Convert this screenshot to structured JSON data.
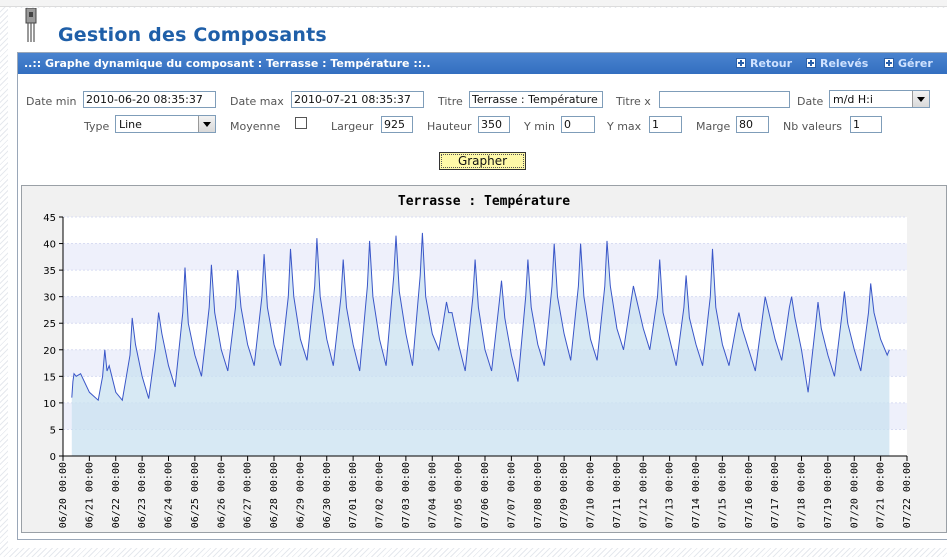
{
  "page": {
    "title": "Gestion des Composants"
  },
  "panel": {
    "title": "..:: Graphe dynamique du composant : Terrasse : Température ::..",
    "links": {
      "retour": "Retour",
      "releves": "Relevés",
      "gerer": "Gérer"
    }
  },
  "form": {
    "date_min": {
      "label": "Date min",
      "value": "2010-06-20 08:35:37"
    },
    "date_max": {
      "label": "Date max",
      "value": "2010-07-21 08:35:37"
    },
    "titre": {
      "label": "Titre",
      "value": "Terrasse : Température"
    },
    "titre_x": {
      "label": "Titre x",
      "value": ""
    },
    "date_fmt": {
      "label": "Date",
      "value": "m/d H:i"
    },
    "type": {
      "label": "Type",
      "value": "Line"
    },
    "moyenne": {
      "label": "Moyenne",
      "checked": false
    },
    "largeur": {
      "label": "Largeur",
      "value": "925"
    },
    "hauteur": {
      "label": "Hauteur",
      "value": "350"
    },
    "ymin": {
      "label": "Y min",
      "value": "0"
    },
    "ymax": {
      "label": "Y max",
      "value": "1"
    },
    "marge": {
      "label": "Marge",
      "value": "80"
    },
    "nb_valeurs": {
      "label": "Nb valeurs",
      "value": "1"
    },
    "submit": "Grapher"
  },
  "colors": {
    "header_blue": "#3a76c6",
    "title_blue": "#1f5fa8",
    "line": "#3a56c8",
    "fill": "#c9e2f0",
    "button_yellow": "#fff9a8"
  },
  "chart_data": {
    "type": "area",
    "title": "Terrasse : Température",
    "xlabel": "",
    "ylabel": "",
    "ylim": [
      0,
      45
    ],
    "yticks": [
      0,
      5,
      10,
      15,
      20,
      25,
      30,
      35,
      40,
      45
    ],
    "x_start": "2010-06-20 00:00",
    "x_end": "2010-07-22 00:00",
    "x_tick_labels": [
      "06/20 00:00",
      "06/21 00:00",
      "06/22 00:00",
      "06/23 00:00",
      "06/24 00:00",
      "06/25 00:00",
      "06/26 00:00",
      "06/27 00:00",
      "06/28 00:00",
      "06/29 00:00",
      "06/30 00:00",
      "07/01 00:00",
      "07/02 00:00",
      "07/03 00:00",
      "07/04 00:00",
      "07/05 00:00",
      "07/06 00:00",
      "07/07 00:00",
      "07/08 00:00",
      "07/09 00:00",
      "07/10 00:00",
      "07/11 00:00",
      "07/12 00:00",
      "07/13 00:00",
      "07/14 00:00",
      "07/15 00:00",
      "07/16 00:00",
      "07/17 00:00",
      "07/18 00:00",
      "07/19 00:00",
      "07/20 00:00",
      "07/21 00:00",
      "07/22 00:00"
    ],
    "series": [
      {
        "points": [
          [
            "06/20 08:00",
            11
          ],
          [
            "06/20 09:00",
            14
          ],
          [
            "06/20 10:00",
            15.5
          ],
          [
            "06/20 12:00",
            15
          ],
          [
            "06/20 16:00",
            15.5
          ],
          [
            "06/21 00:00",
            12
          ],
          [
            "06/21 08:00",
            10.5
          ],
          [
            "06/21 12:00",
            15
          ],
          [
            "06/21 14:00",
            20
          ],
          [
            "06/21 16:00",
            16
          ],
          [
            "06/21 18:00",
            17
          ],
          [
            "06/22 00:00",
            12
          ],
          [
            "06/22 06:00",
            10.5
          ],
          [
            "06/22 13:00",
            19
          ],
          [
            "06/22 15:00",
            26
          ],
          [
            "06/22 18:00",
            21
          ],
          [
            "06/23 00:00",
            15
          ],
          [
            "06/23 06:00",
            10.8
          ],
          [
            "06/23 12:00",
            20
          ],
          [
            "06/23 15:00",
            27
          ],
          [
            "06/23 18:00",
            23
          ],
          [
            "06/24 00:00",
            17
          ],
          [
            "06/24 06:00",
            13
          ],
          [
            "06/24 13:00",
            27
          ],
          [
            "06/24 15:00",
            35.5
          ],
          [
            "06/24 18:00",
            25
          ],
          [
            "06/25 00:00",
            19
          ],
          [
            "06/25 06:00",
            15
          ],
          [
            "06/25 13:00",
            28
          ],
          [
            "06/25 15:00",
            36
          ],
          [
            "06/25 18:00",
            27
          ],
          [
            "06/26 00:00",
            20
          ],
          [
            "06/26 06:00",
            16
          ],
          [
            "06/26 13:00",
            28
          ],
          [
            "06/26 15:00",
            35
          ],
          [
            "06/26 18:00",
            28
          ],
          [
            "06/27 00:00",
            21
          ],
          [
            "06/27 06:00",
            17
          ],
          [
            "06/27 13:00",
            30
          ],
          [
            "06/27 15:00",
            38
          ],
          [
            "06/27 18:00",
            28
          ],
          [
            "06/28 00:00",
            21
          ],
          [
            "06/28 06:00",
            17
          ],
          [
            "06/28 13:00",
            30
          ],
          [
            "06/28 15:00",
            39
          ],
          [
            "06/28 18:00",
            30
          ],
          [
            "06/29 00:00",
            22
          ],
          [
            "06/29 06:00",
            18
          ],
          [
            "06/29 13:00",
            32
          ],
          [
            "06/29 15:00",
            41
          ],
          [
            "06/29 18:00",
            30
          ],
          [
            "06/30 00:00",
            22
          ],
          [
            "06/30 06:00",
            17
          ],
          [
            "06/30 13:00",
            30
          ],
          [
            "06/30 15:00",
            37
          ],
          [
            "06/30 18:00",
            28
          ],
          [
            "07/01 00:00",
            21
          ],
          [
            "07/01 06:00",
            16
          ],
          [
            "07/01 13:00",
            32
          ],
          [
            "07/01 15:00",
            40.5
          ],
          [
            "07/01 18:00",
            30
          ],
          [
            "07/02 00:00",
            22
          ],
          [
            "07/02 06:00",
            17
          ],
          [
            "07/02 13:00",
            34
          ],
          [
            "07/02 15:00",
            41.5
          ],
          [
            "07/02 18:00",
            31
          ],
          [
            "07/03 00:00",
            23
          ],
          [
            "07/03 06:00",
            17
          ],
          [
            "07/03 13:00",
            34
          ],
          [
            "07/03 15:00",
            42
          ],
          [
            "07/03 18:00",
            30
          ],
          [
            "07/04 00:00",
            23
          ],
          [
            "07/04 06:00",
            20
          ],
          [
            "07/04 13:00",
            29
          ],
          [
            "07/04 15:00",
            27
          ],
          [
            "07/04 18:00",
            27
          ],
          [
            "07/05 00:00",
            21
          ],
          [
            "07/05 06:00",
            16
          ],
          [
            "07/05 13:00",
            30
          ],
          [
            "07/05 15:00",
            37
          ],
          [
            "07/05 18:00",
            28
          ],
          [
            "07/06 00:00",
            20
          ],
          [
            "07/06 06:00",
            16
          ],
          [
            "07/06 13:00",
            29
          ],
          [
            "07/06 15:00",
            33
          ],
          [
            "07/06 18:00",
            26
          ],
          [
            "07/07 00:00",
            19
          ],
          [
            "07/07 06:00",
            14
          ],
          [
            "07/07 13:00",
            30
          ],
          [
            "07/07 15:00",
            37
          ],
          [
            "07/07 18:00",
            28
          ],
          [
            "07/08 00:00",
            21
          ],
          [
            "07/08 06:00",
            17
          ],
          [
            "07/08 13:00",
            32
          ],
          [
            "07/08 15:00",
            40
          ],
          [
            "07/08 18:00",
            30
          ],
          [
            "07/09 00:00",
            23
          ],
          [
            "07/09 06:00",
            18
          ],
          [
            "07/09 13:00",
            32
          ],
          [
            "07/09 15:00",
            40
          ],
          [
            "07/09 18:00",
            30
          ],
          [
            "07/10 00:00",
            22
          ],
          [
            "07/10 06:00",
            18
          ],
          [
            "07/10 13:00",
            32
          ],
          [
            "07/10 15:00",
            40.5
          ],
          [
            "07/10 18:00",
            32
          ],
          [
            "07/11 00:00",
            24
          ],
          [
            "07/11 06:00",
            20
          ],
          [
            "07/11 15:00",
            32
          ],
          [
            "07/12 00:00",
            24
          ],
          [
            "07/12 06:00",
            20
          ],
          [
            "07/12 13:00",
            30
          ],
          [
            "07/12 15:00",
            37
          ],
          [
            "07/12 18:00",
            27
          ],
          [
            "07/13 00:00",
            22
          ],
          [
            "07/13 06:00",
            17
          ],
          [
            "07/13 13:00",
            28
          ],
          [
            "07/13 15:00",
            34
          ],
          [
            "07/13 18:00",
            26
          ],
          [
            "07/14 00:00",
            21
          ],
          [
            "07/14 06:00",
            17
          ],
          [
            "07/14 13:00",
            30
          ],
          [
            "07/14 15:00",
            39
          ],
          [
            "07/14 18:00",
            28
          ],
          [
            "07/15 00:00",
            21
          ],
          [
            "07/15 06:00",
            17
          ],
          [
            "07/15 13:00",
            25
          ],
          [
            "07/15 15:00",
            27
          ],
          [
            "07/15 18:00",
            24
          ],
          [
            "07/16 00:00",
            20
          ],
          [
            "07/16 06:00",
            16
          ],
          [
            "07/16 15:00",
            30
          ],
          [
            "07/17 00:00",
            22
          ],
          [
            "07/17 06:00",
            18
          ],
          [
            "07/17 13:00",
            28
          ],
          [
            "07/17 15:00",
            30
          ],
          [
            "07/17 18:00",
            26
          ],
          [
            "07/18 00:00",
            20
          ],
          [
            "07/18 06:00",
            12
          ],
          [
            "07/18 13:00",
            25
          ],
          [
            "07/18 15:00",
            29
          ],
          [
            "07/18 18:00",
            24
          ],
          [
            "07/19 00:00",
            19
          ],
          [
            "07/19 06:00",
            15
          ],
          [
            "07/19 13:00",
            27
          ],
          [
            "07/19 15:00",
            31
          ],
          [
            "07/19 18:00",
            25
          ],
          [
            "07/20 00:00",
            20
          ],
          [
            "07/20 06:00",
            16
          ],
          [
            "07/20 13:00",
            27
          ],
          [
            "07/20 15:00",
            32.5
          ],
          [
            "07/20 18:00",
            27
          ],
          [
            "07/21 00:00",
            22
          ],
          [
            "07/21 06:00",
            19
          ],
          [
            "07/21 08:00",
            20
          ]
        ]
      }
    ]
  }
}
